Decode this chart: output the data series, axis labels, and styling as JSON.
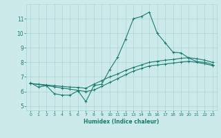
{
  "xlabel": "Humidex (Indice chaleur)",
  "ylabel": "",
  "bg_color": "#cceaea",
  "grid_color": "#aad4d4",
  "line_color": "#1a7a6e",
  "xlim": [
    -0.5,
    23.5
  ],
  "ylim": [
    4.7,
    12.0
  ],
  "xticks": [
    0,
    1,
    2,
    3,
    4,
    5,
    6,
    7,
    8,
    9,
    10,
    11,
    12,
    13,
    14,
    15,
    16,
    17,
    18,
    19,
    20,
    21,
    22,
    23
  ],
  "yticks": [
    5,
    6,
    7,
    8,
    9,
    10,
    11
  ],
  "curve1_x": [
    0,
    1,
    2,
    3,
    4,
    5,
    6,
    7,
    8,
    9,
    10,
    11,
    12,
    13,
    14,
    15,
    16,
    17,
    18,
    19,
    20,
    21,
    22,
    23
  ],
  "curve1_y": [
    6.6,
    6.3,
    6.4,
    5.85,
    5.75,
    5.75,
    6.05,
    5.3,
    6.4,
    6.5,
    7.5,
    8.35,
    9.6,
    11.0,
    11.15,
    11.45,
    10.0,
    9.35,
    8.7,
    8.65,
    8.3,
    8.05,
    8.0,
    7.85
  ],
  "curve2_x": [
    0,
    1,
    2,
    3,
    4,
    5,
    6,
    7,
    8,
    9,
    10,
    11,
    12,
    13,
    14,
    15,
    16,
    17,
    18,
    19,
    20,
    21,
    22,
    23
  ],
  "curve2_y": [
    6.55,
    6.5,
    6.45,
    6.4,
    6.35,
    6.3,
    6.28,
    6.22,
    6.5,
    6.75,
    7.0,
    7.2,
    7.45,
    7.65,
    7.82,
    8.0,
    8.08,
    8.15,
    8.2,
    8.28,
    8.32,
    8.25,
    8.15,
    8.0
  ],
  "curve3_x": [
    0,
    1,
    2,
    3,
    4,
    5,
    6,
    7,
    8,
    9,
    10,
    11,
    12,
    13,
    14,
    15,
    16,
    17,
    18,
    19,
    20,
    21,
    22,
    23
  ],
  "curve3_y": [
    6.55,
    6.48,
    6.4,
    6.32,
    6.24,
    6.16,
    6.08,
    6.0,
    6.1,
    6.35,
    6.62,
    6.88,
    7.15,
    7.4,
    7.58,
    7.75,
    7.82,
    7.88,
    7.95,
    8.02,
    8.08,
    8.0,
    7.9,
    7.78
  ]
}
